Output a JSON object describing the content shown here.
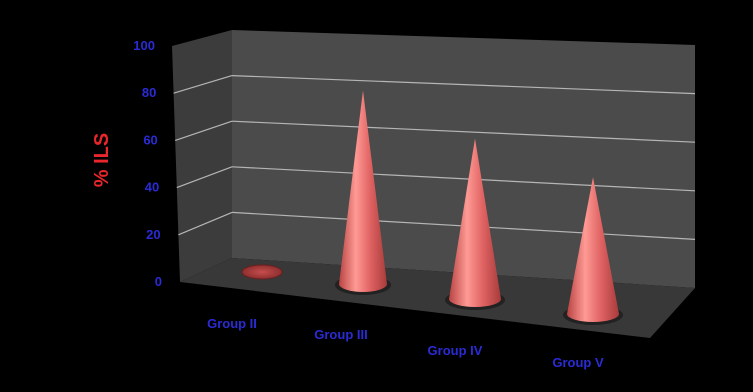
{
  "chart_data": {
    "type": "bar",
    "style": "3d-cone",
    "categories": [
      "Group II",
      "Group III",
      "Group IV",
      "Group V"
    ],
    "values": [
      0,
      82,
      68,
      58
    ],
    "ylabel": "% ILS",
    "ylim": [
      0,
      100
    ],
    "yticks": [
      "0",
      "20",
      "40",
      "60",
      "80",
      "100"
    ],
    "grid": true,
    "legend": "none",
    "colors": {
      "background": "#000000",
      "wall": "#4a4a4a",
      "floor": "#3a3a3a",
      "gridline": "#b5b5b5",
      "cone": "#e06363",
      "cone_highlight": "#ff9a94",
      "cone_shadow": "#a83b3b",
      "tick_label": "#2b2bd6",
      "axis_title": "#e8262b"
    }
  }
}
